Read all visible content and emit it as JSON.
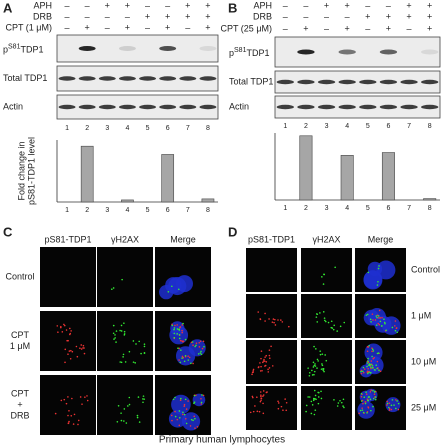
{
  "panel_a": {
    "label": "A",
    "treatments": [
      {
        "name": "APH",
        "signs": [
          "–",
          "–",
          "+",
          "+",
          "–",
          "–",
          "+",
          "+"
        ]
      },
      {
        "name": "DRB",
        "signs": [
          "–",
          "–",
          "–",
          "–",
          "+",
          "+",
          "+",
          "+"
        ]
      },
      {
        "name": "CPT (1 μM)",
        "signs": [
          "–",
          "+",
          "–",
          "+",
          "–",
          "+",
          "–",
          "+"
        ]
      }
    ],
    "blots": [
      {
        "prefix": "p",
        "sup": "S81",
        "name": "TDP1"
      },
      {
        "name": "Total TDP1"
      },
      {
        "name": "Actin"
      }
    ],
    "lanes": [
      "1",
      "2",
      "3",
      "4",
      "5",
      "6",
      "7",
      "8"
    ]
  },
  "panel_b": {
    "label": "B",
    "treatments": [
      {
        "name": "APH",
        "signs": [
          "–",
          "–",
          "+",
          "+",
          "–",
          "–",
          "+",
          "+"
        ]
      },
      {
        "name": "DRB",
        "signs": [
          "–",
          "–",
          "–",
          "–",
          "+",
          "+",
          "+",
          "+"
        ]
      },
      {
        "name": "CPT (25 μM)",
        "signs": [
          "–",
          "+",
          "–",
          "+",
          "–",
          "+",
          "–",
          "+"
        ]
      }
    ],
    "blots": [
      {
        "prefix": "p",
        "sup": "S81",
        "name": "TDP1"
      },
      {
        "name": "Total TDP1"
      },
      {
        "name": "Actin"
      }
    ],
    "lanes": [
      "1",
      "2",
      "3",
      "4",
      "5",
      "6",
      "7",
      "8"
    ]
  },
  "chart_data": [
    {
      "type": "bar",
      "y_label": [
        "Fold change in",
        "pS81-TDP1 level"
      ],
      "categories": [
        "1",
        "2",
        "3",
        "4",
        "5",
        "6",
        "7",
        "8"
      ],
      "values": [
        null,
        2.7,
        null,
        0.1,
        null,
        2.3,
        null,
        0.15
      ],
      "ylim": [
        0,
        3
      ],
      "color": "#a6a6a6"
    },
    {
      "type": "bar",
      "categories": [
        "1",
        "2",
        "3",
        "4",
        "5",
        "6",
        "7",
        "8"
      ],
      "values": [
        null,
        2.3,
        null,
        1.6,
        null,
        1.7,
        null,
        0.05
      ],
      "ylim": [
        0,
        2.4
      ],
      "color": "#a6a6a6"
    }
  ],
  "panel_c": {
    "label": "C",
    "columns": [
      "pS81-TDP1",
      "γH2AX",
      "Merge"
    ],
    "rows": [
      [
        "Control"
      ],
      [
        "CPT",
        "1 μM"
      ],
      [
        "CPT",
        "+",
        "DRB"
      ]
    ]
  },
  "panel_d": {
    "label": "D",
    "columns": [
      "pS81-TDP1",
      "γH2AX",
      "Merge"
    ],
    "rows": [
      "Control",
      "1 μM",
      "10 μM",
      "25 μM"
    ]
  },
  "caption": "Primary human lymphocytes"
}
